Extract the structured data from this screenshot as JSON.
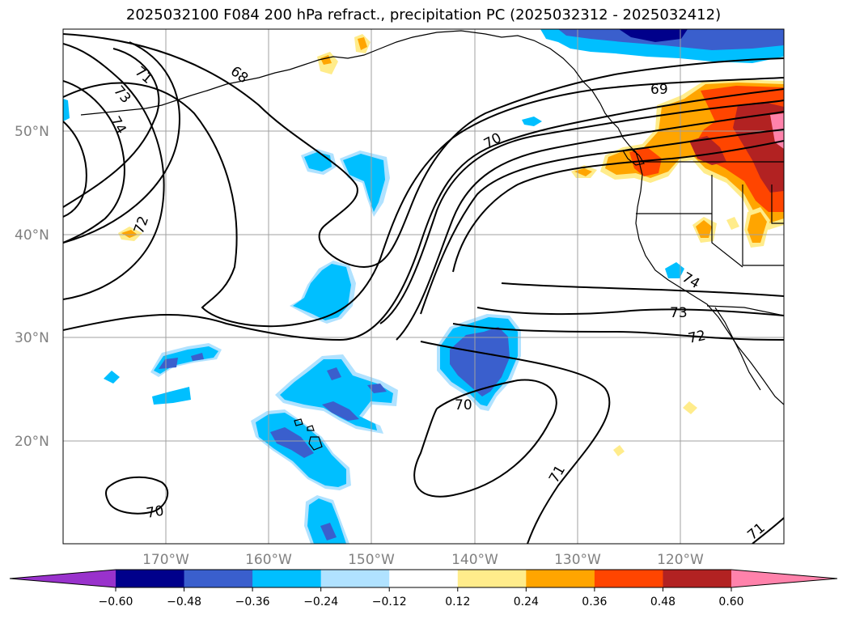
{
  "title": "2025032100 F084 200 hPa refract., precipitation PC (2025032312 - 2025032412)",
  "lat_labels": [
    "50°N",
    "40°N",
    "30°N",
    "20°N"
  ],
  "lon_labels": [
    "170°W",
    "160°W",
    "150°W",
    "140°W",
    "130°W",
    "120°W"
  ],
  "contour_labels": [
    "68",
    "69",
    "70",
    "70",
    "70",
    "71",
    "71",
    "71",
    "72",
    "72",
    "73",
    "73",
    "74",
    "74"
  ],
  "colorbar": {
    "tick_labels": [
      "−0.60",
      "−0.48",
      "−0.36",
      "−0.24",
      "−0.12",
      "0.12",
      "0.24",
      "0.36",
      "0.48",
      "0.60"
    ],
    "colors": [
      "#9932CC",
      "#00008B",
      "#3A5FCD",
      "#00BFFF",
      "#B0E2FF",
      "#FFFFFF",
      "#FFEC8B",
      "#FFA500",
      "#FF4500",
      "#B22222",
      "#FF82AB"
    ]
  }
}
